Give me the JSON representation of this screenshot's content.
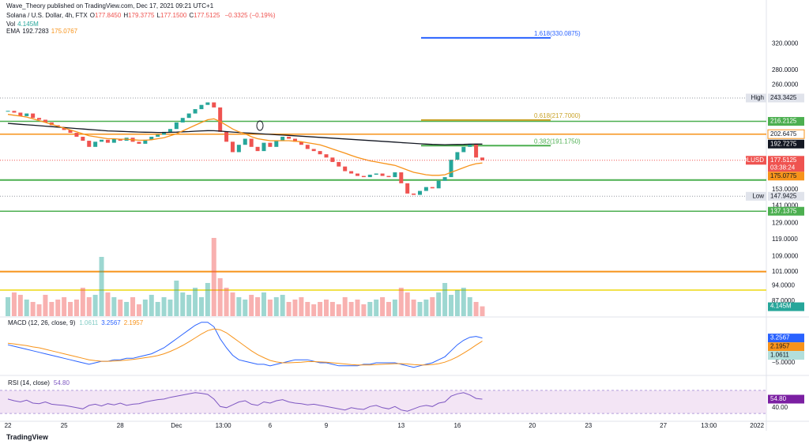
{
  "header": {
    "publisher": "Wave_Theory published on TradingView.com, Dec 17, 2021 09:21 UTC+1",
    "symbol": "Solana / U.S. Dollar, 4h, FTX",
    "ohlc": [
      {
        "label": "O",
        "value": "177.8450"
      },
      {
        "label": "H",
        "value": "179.3775"
      },
      {
        "label": "L",
        "value": "177.1500"
      },
      {
        "label": "C",
        "value": "177.5125"
      }
    ],
    "change": "−0.3325 (−0.19%)"
  },
  "footer": {
    "brand": "TradingView"
  },
  "chart_data": [
    {
      "type": "candlestick",
      "legend": [
        {
          "name": "Vol",
          "values": [
            "4.145M"
          ],
          "colors": [
            "#26a69a"
          ]
        },
        {
          "name": "EMA",
          "values": [
            "192.7283",
            "175.0767"
          ],
          "colors": [
            "#131722",
            "#f7931a"
          ]
        }
      ],
      "xlim": [
        -1.27,
        121.5
      ],
      "xticks": [
        {
          "value": 0,
          "label": "22"
        },
        {
          "value": 9,
          "label": "25"
        },
        {
          "value": 18,
          "label": "28"
        },
        {
          "value": 27,
          "label": "Dec"
        },
        {
          "value": 34.5,
          "label": "13:00"
        },
        {
          "value": 42,
          "label": "6"
        },
        {
          "value": 51,
          "label": "9"
        },
        {
          "value": 63,
          "label": "13"
        },
        {
          "value": 72,
          "label": "16"
        },
        {
          "value": 84,
          "label": "20"
        },
        {
          "value": 93,
          "label": "23"
        },
        {
          "value": 105,
          "label": "27"
        },
        {
          "value": 112.3,
          "label": "13:00"
        },
        {
          "value": 120,
          "label": "2022"
        }
      ],
      "ylim": [
        80.6,
        372
      ],
      "log_scale": true,
      "yticks": [
        {
          "value": 320,
          "label": "320.0000"
        },
        {
          "value": 280,
          "label": "280.0000"
        },
        {
          "value": 260,
          "label": "260.0000"
        },
        {
          "value": 153,
          "label": "153.0000"
        },
        {
          "value": 141,
          "label": "141.0000"
        },
        {
          "value": 129,
          "label": "129.0000"
        },
        {
          "value": 119,
          "label": "119.0000"
        },
        {
          "value": 109,
          "label": "109.0000"
        },
        {
          "value": 101,
          "label": "101.0000"
        },
        {
          "value": 94,
          "label": "94.0000"
        },
        {
          "value": 87,
          "label": "87.0000"
        }
      ],
      "up_color": "#26a69a",
      "down_color": "#ef5350",
      "closes": [
        228,
        226,
        222,
        225,
        220,
        218,
        215,
        212,
        210,
        207,
        204,
        200,
        196,
        190,
        195,
        197,
        194,
        198,
        196,
        199,
        195,
        193,
        197,
        200,
        202,
        205,
        208,
        215,
        220,
        225,
        230,
        235,
        238,
        232,
        205,
        195,
        185,
        192,
        198,
        190,
        186,
        194,
        190,
        196,
        200,
        198,
        195,
        192,
        188,
        186,
        183,
        180,
        176,
        172,
        168,
        166,
        164,
        163,
        165,
        166,
        164,
        163,
        167,
        158,
        150,
        149,
        152,
        155,
        154,
        160,
        163,
        178,
        185,
        190,
        193,
        180,
        177.5
      ],
      "series": [
        {
          "color": "#131722",
          "values": [
            214,
            213.5,
            213,
            212.5,
            212,
            211.5,
            211,
            210.5,
            210,
            209.5,
            209,
            208.5,
            208,
            207.5,
            207,
            206.5,
            206,
            205.8,
            205.5,
            205.3,
            205,
            204.8,
            204.6,
            204.5,
            204.4,
            204.4,
            204.5,
            204.7,
            205,
            205.3,
            205.7,
            206,
            206.3,
            206.2,
            205.8,
            205.3,
            204.8,
            204.4,
            204,
            203.6,
            203.2,
            202.8,
            202.4,
            202,
            201.7,
            201.4,
            201,
            200.6,
            200.2,
            199.8,
            199.4,
            199,
            198.6,
            198.2,
            197.8,
            197.4,
            197,
            196.6,
            196.2,
            195.8,
            195.4,
            195,
            194.6,
            194.2,
            193.8,
            193.4,
            193,
            192.7,
            192.4,
            192.2,
            192.1,
            192.2,
            192.3,
            192.4,
            192.6,
            192.7,
            192.73
          ]
        },
        {
          "color": "#f7931a",
          "values": [
            224,
            223,
            222,
            221,
            219,
            217,
            215,
            213,
            211,
            209,
            207,
            205,
            203,
            201,
            200,
            199,
            198,
            198,
            197.5,
            197.5,
            197,
            196.5,
            196.5,
            197,
            198,
            199,
            201,
            203,
            206,
            209,
            212,
            215,
            218,
            219,
            216,
            212,
            208,
            205,
            203,
            200,
            198,
            197,
            196,
            196,
            196,
            196,
            195.5,
            195,
            194,
            193,
            192,
            190,
            188,
            186,
            184,
            182,
            180,
            178.5,
            177,
            176,
            175,
            174,
            173,
            171,
            169,
            167,
            166,
            165,
            164.5,
            164.5,
            165,
            167,
            169,
            171,
            173,
            174.5,
            175.08
          ]
        }
      ],
      "volume": {
        "values": [
          8,
          10,
          9,
          7,
          6,
          5,
          9,
          6,
          7,
          8,
          6,
          7,
          12,
          8,
          9,
          25,
          10,
          8,
          7,
          6,
          8,
          5,
          7,
          9,
          6,
          8,
          7,
          15,
          10,
          9,
          12,
          8,
          14,
          33,
          16,
          12,
          10,
          8,
          7,
          9,
          8,
          10,
          7,
          8,
          9,
          6,
          7,
          8,
          6,
          5,
          6,
          7,
          6,
          5,
          8,
          6,
          7,
          5,
          6,
          7,
          8,
          6,
          7,
          12,
          10,
          7,
          6,
          7,
          8,
          10,
          14,
          9,
          11,
          12,
          8,
          6,
          4.145
        ],
        "tag": {
          "value": 4.145,
          "label": "4.145M"
        }
      },
      "levels": [
        {
          "value": 216.2125,
          "color": "#4caf50",
          "width": 1.5
        },
        {
          "value": 202.6475,
          "color": "#f7931a",
          "width": 1.5
        },
        {
          "value": 160.6,
          "color": "#4caf50",
          "width": 2
        },
        {
          "value": 137.1375,
          "color": "#4caf50",
          "width": 1.5
        },
        {
          "value": 101,
          "color": "#f7931a",
          "width": 2
        },
        {
          "value": 92,
          "color": "#f2e14b",
          "width": 2
        }
      ],
      "fib": [
        {
          "value": 330.0875,
          "label": "1.618(330.0875)",
          "color": "#2962ff"
        },
        {
          "value": 217.7,
          "label": "0.618(217.7000)",
          "color": "#c9a227"
        },
        {
          "value": 191.175,
          "label": "0.382(191.1750)",
          "color": "#4caf50"
        }
      ],
      "tags": [
        {
          "value": 243.3425,
          "name": "High",
          "bg": "#e0e3eb",
          "fg": "#131722",
          "dotted": true
        },
        {
          "value": 216.2125,
          "bg": "#4caf50",
          "fg": "#ffffff"
        },
        {
          "value": 202.6475,
          "bg": "#ffffff",
          "fg": "#131722",
          "border": "#f7931a"
        },
        {
          "value": 192.7275,
          "bg": "#131722",
          "fg": "#ffffff"
        },
        {
          "value": 177.5125,
          "name": "SOLUSD",
          "countdown": "03:38:24",
          "bg": "#ef5350",
          "fg": "#ffffff",
          "dotted": true
        },
        {
          "value": 175.0775,
          "bg": "#f7931a",
          "fg": "#131722"
        },
        {
          "value": 147.9425,
          "name": "Low",
          "bg": "#e0e3eb",
          "fg": "#131722",
          "dotted": true
        },
        {
          "value": 137.1375,
          "bg": "#4caf50",
          "fg": "#ffffff"
        }
      ]
    },
    {
      "type": "line",
      "title": "MACD (12, 26, close, 9)",
      "legend_values": [
        {
          "text": "1.0611",
          "color": "#80cbc4"
        },
        {
          "text": "3.2567",
          "color": "#2962ff"
        },
        {
          "text": "2.1957",
          "color": "#f7931a"
        }
      ],
      "xlim": [
        -1.27,
        121.5
      ],
      "ylim": [
        -8.42,
        10
      ],
      "yticks": [
        {
          "value": -5,
          "label": "−5.0000"
        }
      ],
      "series": [
        {
          "color": "#2962ff",
          "values": [
            1,
            0.5,
            0,
            -0.5,
            -1,
            -1.5,
            -2,
            -2.5,
            -3,
            -3.5,
            -4,
            -4.5,
            -5,
            -5.5,
            -5,
            -4.5,
            -4.5,
            -4,
            -4,
            -3.5,
            -3.5,
            -3,
            -2.5,
            -2,
            -1,
            0,
            1.5,
            3,
            4.5,
            6,
            7.5,
            8.5,
            8.5,
            7,
            3,
            0,
            -2.5,
            -4,
            -4.5,
            -5,
            -5.5,
            -5.5,
            -6,
            -5.5,
            -5,
            -4.5,
            -4,
            -4,
            -4,
            -4.5,
            -5,
            -5,
            -5.5,
            -6,
            -6,
            -6,
            -6,
            -5.5,
            -5.5,
            -5,
            -5,
            -5,
            -5,
            -5.5,
            -6,
            -6.5,
            -6,
            -5.5,
            -5,
            -4,
            -3,
            -1,
            1,
            2.5,
            3.5,
            3.8,
            3.26
          ]
        },
        {
          "color": "#f7931a",
          "values": [
            1.5,
            1.3,
            1,
            0.7,
            0.3,
            0,
            -0.5,
            -1,
            -1.5,
            -2,
            -2.5,
            -3,
            -3.5,
            -4,
            -4.3,
            -4.5,
            -4.5,
            -4.4,
            -4.3,
            -4.1,
            -3.9,
            -3.6,
            -3.3,
            -3,
            -2.6,
            -2,
            -1.2,
            -0.3,
            0.8,
            2,
            3.3,
            4.6,
            5.7,
            6.3,
            6,
            5,
            3.5,
            2,
            0.5,
            -1,
            -2.3,
            -3.3,
            -4.2,
            -4.7,
            -5,
            -5,
            -4.9,
            -4.8,
            -4.6,
            -4.6,
            -4.7,
            -4.8,
            -5,
            -5.2,
            -5.4,
            -5.6,
            -5.7,
            -5.7,
            -5.7,
            -5.6,
            -5.5,
            -5.4,
            -5.3,
            -5.3,
            -5.4,
            -5.6,
            -5.7,
            -5.7,
            -5.6,
            -5.3,
            -4.8,
            -4,
            -3,
            -1.8,
            -0.5,
            0.9,
            2.2
          ]
        }
      ],
      "tags": [
        {
          "value": 3.2567,
          "bg": "#2962ff",
          "fg": "#ffffff"
        },
        {
          "value": 2.1957,
          "bg": "#f7931a",
          "fg": "#131722"
        },
        {
          "value": 1.0611,
          "bg": "#b2dfdb",
          "fg": "#131722"
        }
      ]
    },
    {
      "type": "line",
      "title": "RSI (14, close)",
      "legend_values": [
        {
          "text": "54.80",
          "color": "#7e57c2"
        }
      ],
      "xlim": [
        -1.27,
        121.5
      ],
      "ylim": [
        17.8,
        91.8
      ],
      "yticks": [
        {
          "value": 40,
          "label": "40.00"
        }
      ],
      "band": [
        30,
        70
      ],
      "band_color": "#f3e5f5",
      "series": [
        {
          "color": "#7e57c2",
          "values": [
            55,
            52,
            50,
            53,
            48,
            47,
            50,
            46,
            45,
            44,
            42,
            40,
            38,
            44,
            46,
            43,
            47,
            45,
            48,
            44,
            46,
            47,
            50,
            52,
            54,
            55,
            58,
            60,
            62,
            64,
            66,
            65,
            63,
            55,
            42,
            40,
            45,
            50,
            52,
            46,
            44,
            50,
            48,
            52,
            54,
            50,
            48,
            47,
            45,
            46,
            44,
            42,
            40,
            38,
            36,
            40,
            38,
            37,
            42,
            44,
            40,
            38,
            42,
            36,
            34,
            38,
            42,
            44,
            42,
            48,
            50,
            60,
            64,
            66,
            62,
            56,
            54.8
          ]
        }
      ],
      "tags": [
        {
          "value": 54.8,
          "label": "54.80",
          "bg": "#7b1fa2",
          "fg": "#ffffff"
        }
      ]
    }
  ]
}
